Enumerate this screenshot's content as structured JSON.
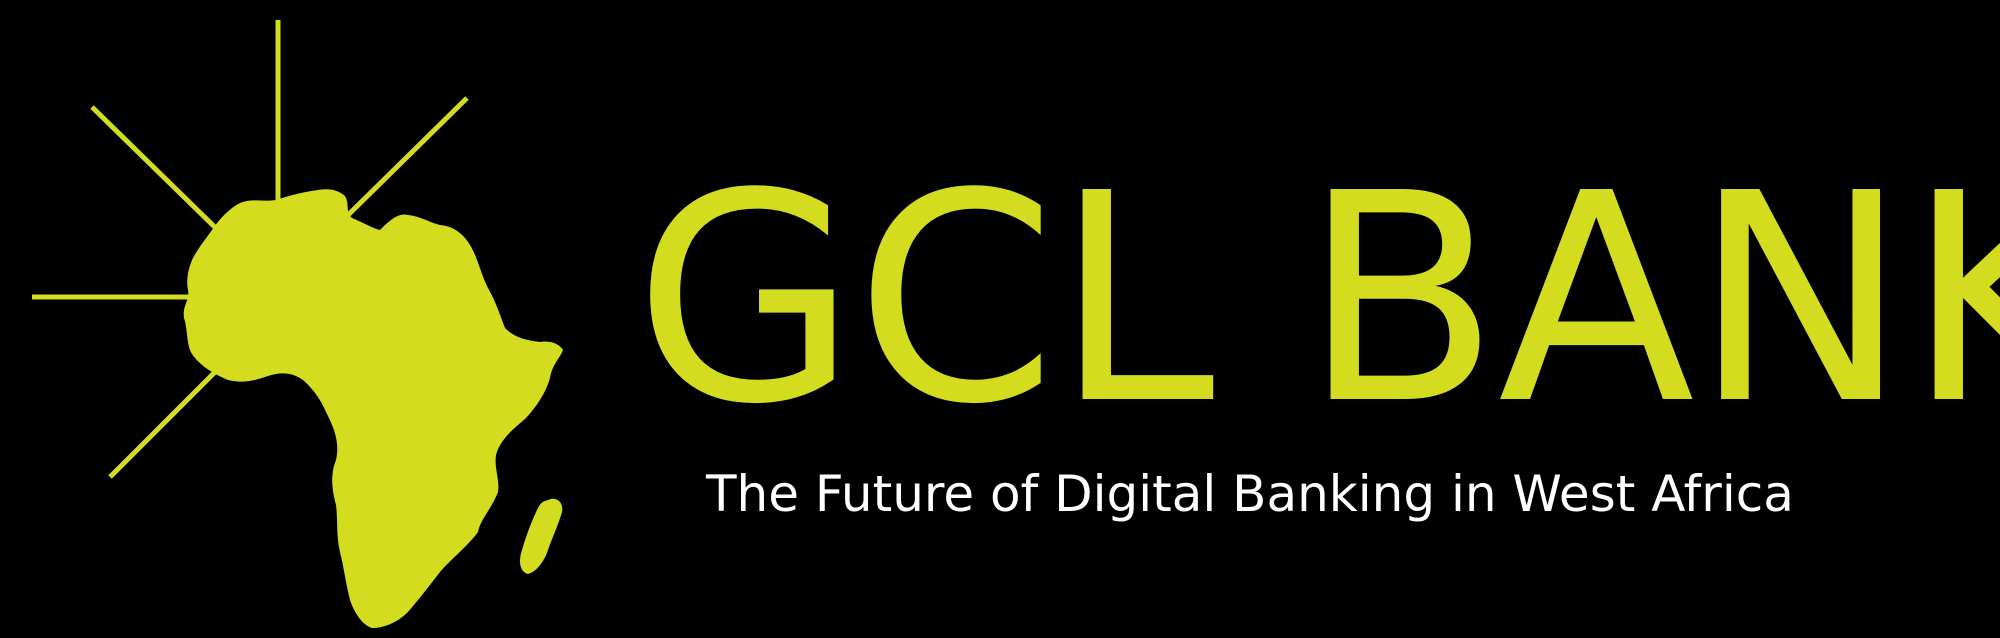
{
  "brand": {
    "name": "GCL BANK",
    "tagline": "The Future of Digital Banking in West Africa"
  },
  "colors": {
    "background": "#000000",
    "brand_lime": "#d3dc1f",
    "tagline_white": "#ffffff"
  },
  "icons": {
    "emblem": "africa-map-with-sun-rays-icon"
  }
}
